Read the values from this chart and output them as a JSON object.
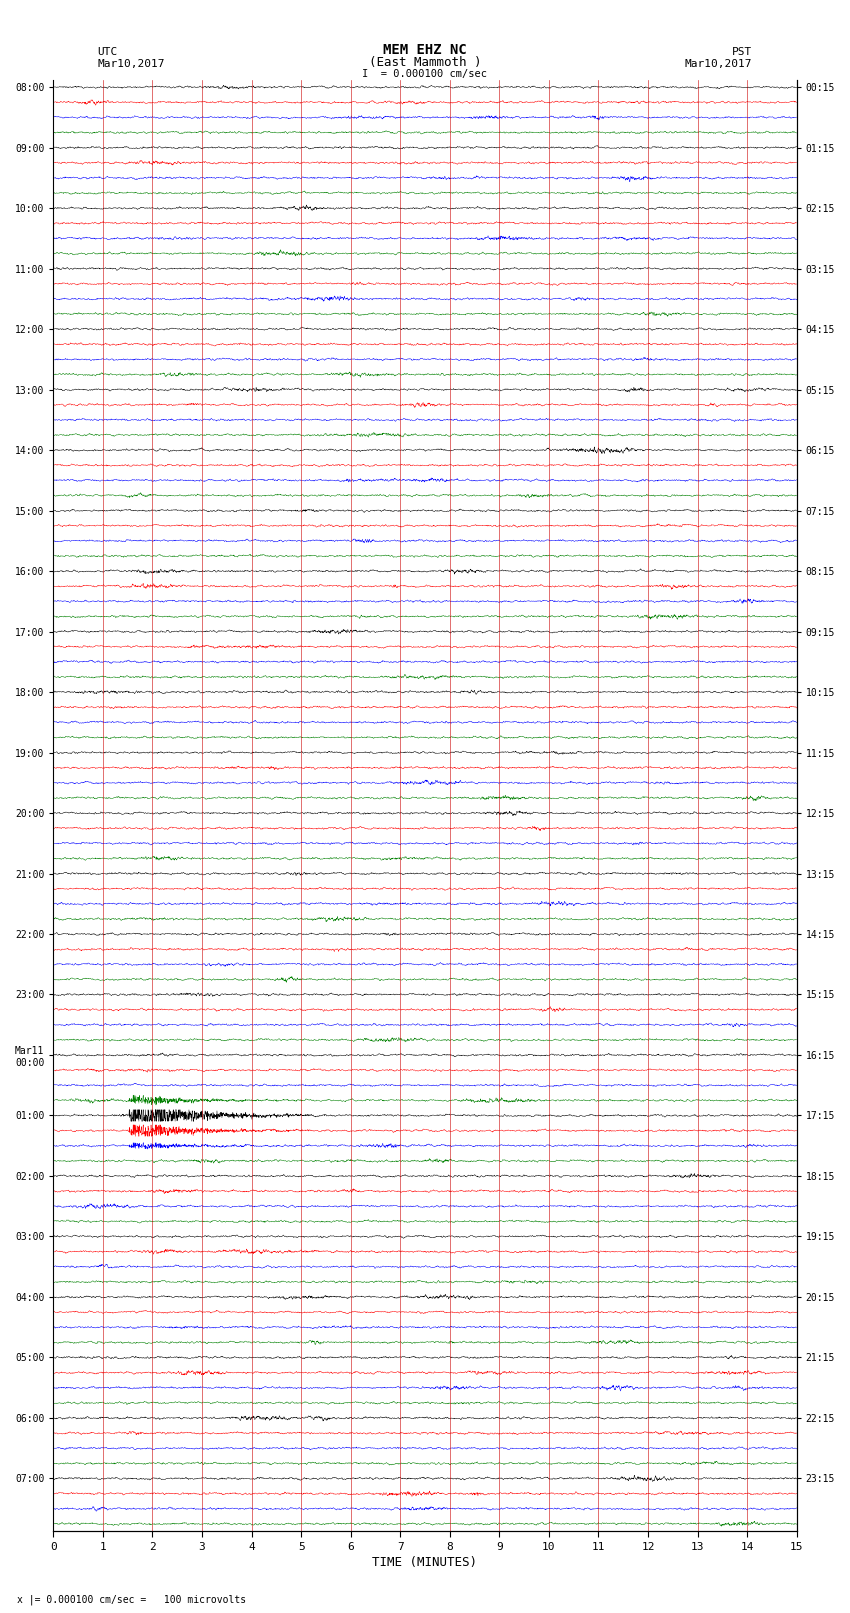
{
  "title_line1": "MEM EHZ NC",
  "title_line2": "(East Mammoth )",
  "scale_label": "I  = 0.000100 cm/sec",
  "left_header": "UTC",
  "left_date": "Mar10,2017",
  "right_header": "PST",
  "right_date": "Mar10,2017",
  "bottom_label": "TIME (MINUTES)",
  "bottom_note": "x |= 0.000100 cm/sec =   100 microvolts",
  "utc_labels": [
    "08:00",
    "09:00",
    "10:00",
    "11:00",
    "12:00",
    "13:00",
    "14:00",
    "15:00",
    "16:00",
    "17:00",
    "18:00",
    "19:00",
    "20:00",
    "21:00",
    "22:00",
    "23:00",
    "Mar11\n00:00",
    "01:00",
    "02:00",
    "03:00",
    "04:00",
    "05:00",
    "06:00",
    "07:00"
  ],
  "pst_labels": [
    "00:15",
    "01:15",
    "02:15",
    "03:15",
    "04:15",
    "05:15",
    "06:15",
    "07:15",
    "08:15",
    "09:15",
    "10:15",
    "11:15",
    "12:15",
    "13:15",
    "14:15",
    "15:15",
    "16:15",
    "17:15",
    "18:15",
    "19:15",
    "20:15",
    "21:15",
    "22:15",
    "23:15"
  ],
  "trace_colors": [
    "black",
    "red",
    "blue",
    "green"
  ],
  "n_rows": 96,
  "n_hours": 24,
  "x_min": 0,
  "x_max": 15,
  "x_ticks": [
    0,
    1,
    2,
    3,
    4,
    5,
    6,
    7,
    8,
    9,
    10,
    11,
    12,
    13,
    14,
    15
  ],
  "bg_color": "#ffffff",
  "grid_color": "#cc0000",
  "seed": 42
}
